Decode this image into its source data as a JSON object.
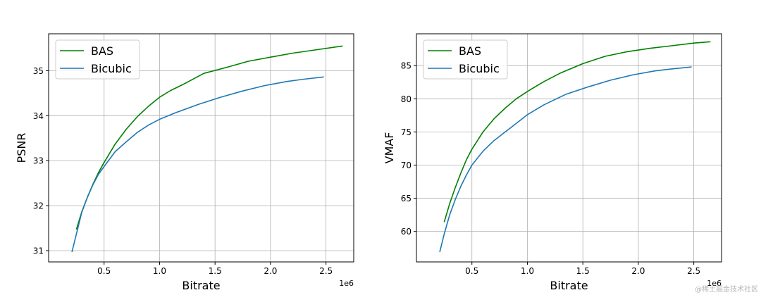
{
  "chart_data": [
    {
      "type": "line",
      "xlabel": "Bitrate",
      "ylabel": "PSNR",
      "x_offset_label": "1e6",
      "xlim": [
        0.0,
        2.75
      ],
      "ylim": [
        30.75,
        35.82
      ],
      "xticks": [
        0.5,
        1.0,
        1.5,
        2.0,
        2.5
      ],
      "xtick_labels": [
        "0.5",
        "1.0",
        "1.5",
        "2.0",
        "2.5"
      ],
      "yticks": [
        31,
        32,
        33,
        34,
        35
      ],
      "ytick_labels": [
        "31",
        "32",
        "33",
        "34",
        "35"
      ],
      "grid": true,
      "legend_position": "upper-left",
      "series": [
        {
          "name": "BAS",
          "color": "#008000",
          "x": [
            0.25,
            0.3,
            0.35,
            0.4,
            0.45,
            0.5,
            0.6,
            0.7,
            0.8,
            0.9,
            1.0,
            1.1,
            1.2,
            1.4,
            1.6,
            1.8,
            2.0,
            2.2,
            2.4,
            2.65
          ],
          "y": [
            31.47,
            31.87,
            32.19,
            32.48,
            32.74,
            32.96,
            33.37,
            33.7,
            33.98,
            34.21,
            34.41,
            34.56,
            34.68,
            34.94,
            35.07,
            35.21,
            35.3,
            35.39,
            35.46,
            35.55
          ]
        },
        {
          "name": "Bicubic",
          "color": "#1f77b4",
          "x": [
            0.21,
            0.25,
            0.3,
            0.35,
            0.4,
            0.45,
            0.5,
            0.6,
            0.7,
            0.8,
            0.9,
            1.0,
            1.15,
            1.35,
            1.55,
            1.75,
            1.95,
            2.15,
            2.3,
            2.48
          ],
          "y": [
            30.97,
            31.37,
            31.86,
            32.19,
            32.47,
            32.7,
            32.87,
            33.2,
            33.42,
            33.63,
            33.79,
            33.92,
            34.07,
            34.25,
            34.41,
            34.55,
            34.67,
            34.76,
            34.81,
            34.86
          ]
        }
      ]
    },
    {
      "type": "line",
      "xlabel": "Bitrate",
      "ylabel": "VMAF",
      "x_offset_label": "1e6",
      "xlim": [
        0.0,
        2.75
      ],
      "ylim": [
        55.4,
        89.8
      ],
      "xticks": [
        0.5,
        1.0,
        1.5,
        2.0,
        2.5
      ],
      "xtick_labels": [
        "0.5",
        "1.0",
        "1.5",
        "2.0",
        "2.5"
      ],
      "yticks": [
        60,
        65,
        70,
        75,
        80,
        85
      ],
      "ytick_labels": [
        "60",
        "65",
        "70",
        "75",
        "80",
        "85"
      ],
      "grid": true,
      "legend_position": "upper-left",
      "series": [
        {
          "name": "BAS",
          "color": "#008000",
          "x": [
            0.25,
            0.3,
            0.35,
            0.4,
            0.45,
            0.5,
            0.6,
            0.7,
            0.8,
            0.9,
            1.0,
            1.15,
            1.3,
            1.5,
            1.7,
            1.9,
            2.1,
            2.3,
            2.5,
            2.65
          ],
          "y": [
            61.4,
            64.2,
            66.6,
            68.8,
            70.8,
            72.4,
            75.0,
            77.0,
            78.6,
            80.0,
            81.1,
            82.6,
            83.9,
            85.3,
            86.4,
            87.1,
            87.6,
            88.0,
            88.4,
            88.6
          ]
        },
        {
          "name": "Bicubic",
          "color": "#1f77b4",
          "x": [
            0.21,
            0.25,
            0.3,
            0.35,
            0.4,
            0.45,
            0.5,
            0.6,
            0.7,
            0.8,
            0.9,
            1.0,
            1.15,
            1.35,
            1.55,
            1.75,
            1.95,
            2.15,
            2.3,
            2.48
          ],
          "y": [
            56.9,
            59.6,
            62.5,
            64.8,
            66.8,
            68.5,
            70.0,
            72.1,
            73.7,
            75.0,
            76.3,
            77.6,
            79.1,
            80.7,
            81.8,
            82.8,
            83.6,
            84.2,
            84.5,
            84.8
          ]
        }
      ]
    }
  ],
  "watermark": "@稀土掘金技术社区"
}
